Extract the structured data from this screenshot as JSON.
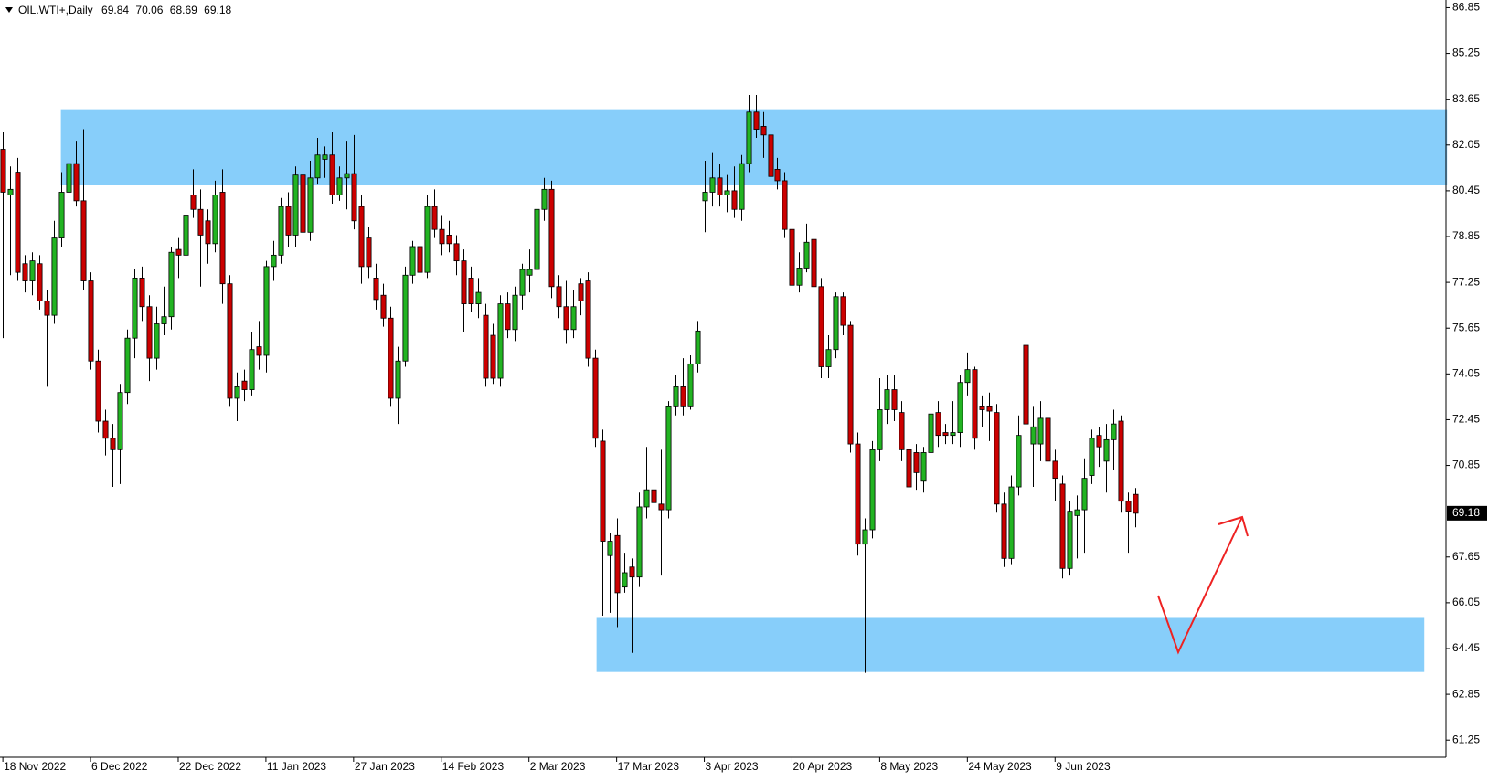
{
  "chart_data": {
    "type": "candlestick",
    "title": "OIL.WTI+,Daily",
    "categories": [
      "18 Nov 2022",
      null,
      null,
      null,
      null,
      null,
      null,
      null,
      null,
      null,
      null,
      null,
      "6 Dec 2022",
      null,
      null,
      null,
      null,
      null,
      null,
      null,
      null,
      null,
      null,
      null,
      "22 Dec 2022",
      null,
      null,
      null,
      null,
      null,
      null,
      null,
      null,
      null,
      null,
      null,
      "11 Jan 2023",
      null,
      null,
      null,
      null,
      null,
      null,
      null,
      null,
      null,
      null,
      null,
      "27 Jan 2023",
      null,
      null,
      null,
      null,
      null,
      null,
      null,
      null,
      null,
      null,
      null,
      "14 Feb 2023",
      null,
      null,
      null,
      null,
      null,
      null,
      null,
      null,
      null,
      null,
      null,
      "2 Mar 2023",
      null,
      null,
      null,
      null,
      null,
      null,
      null,
      null,
      null,
      null,
      null,
      "17 Mar 2023",
      null,
      null,
      null,
      null,
      null,
      null,
      null,
      null,
      null,
      null,
      null,
      "3 Apr 2023",
      null,
      null,
      null,
      null,
      null,
      null,
      null,
      null,
      null,
      null,
      null,
      "20 Apr 2023",
      null,
      null,
      null,
      null,
      null,
      null,
      null,
      null,
      null,
      null,
      null,
      "8 May 2023",
      null,
      null,
      null,
      null,
      null,
      null,
      null,
      null,
      null,
      null,
      null,
      "24 May 2023",
      null,
      null,
      null,
      null,
      null,
      null,
      null,
      null,
      null,
      null,
      null,
      "9 Jun 2023",
      null,
      null,
      null,
      null,
      null,
      null,
      null,
      null,
      null,
      null,
      null
    ],
    "open": [
      81.9,
      80.3,
      81.1,
      77.9,
      77.3,
      77.9,
      76.6,
      76.1,
      78.8,
      80.4,
      81.4,
      80.1,
      77.3,
      74.5,
      72.4,
      71.8,
      71.4,
      73.4,
      75.3,
      77.4,
      76.4,
      74.6,
      75.8,
      76.05,
      78.4,
      78.2,
      80.3,
      79.8,
      79.4,
      78.6,
      80.4,
      77.2,
      73.2,
      73.8,
      73.5,
      75.0,
      74.7,
      77.8,
      78.2,
      79.9,
      78.9,
      81.0,
      79.0,
      80.9,
      81.55,
      81.7,
      80.3,
      80.9,
      81.05,
      79.9,
      78.8,
      77.4,
      76.8,
      76.0,
      73.2,
      74.5,
      77.5,
      78.5,
      77.6,
      79.9,
      79.1,
      78.9,
      78.6,
      78.0,
      77.4,
      76.5,
      76.1,
      75.4,
      73.9,
      76.5,
      75.6,
      76.8,
      77.5,
      77.7,
      79.8,
      80.5,
      77.1,
      76.4,
      75.6,
      77.2,
      77.3,
      74.6,
      71.7,
      67.7,
      68.4,
      66.6,
      67.3,
      66.95,
      69.4,
      70.0,
      69.5,
      69.3,
      72.9,
      73.6,
      72.9,
      74.4,
      80.1,
      80.4,
      80.9,
      80.3,
      80.45,
      79.8,
      81.4,
      83.2,
      82.7,
      82.4,
      81.2,
      80.8,
      79.1,
      77.15,
      77.75,
      78.75,
      77.1,
      74.3,
      74.9,
      76.75,
      75.75,
      71.6,
      68.1,
      68.6,
      71.4,
      72.8,
      73.5,
      72.7,
      71.4,
      71.3,
      70.3,
      71.3,
      72.7,
      72.0,
      71.9,
      72.0,
      73.75,
      74.2,
      72.9,
      72.9,
      72.7,
      69.5,
      67.6,
      70.1,
      75.05,
      71.6,
      71.6,
      72.5,
      71.0,
      70.2,
      67.25,
      69.1,
      69.3,
      70.5,
      71.9,
      71.0,
      71.75,
      72.4,
      69.6,
      69.84
    ],
    "high": [
      82.5,
      81.3,
      81.6,
      78.2,
      78.3,
      78.2,
      77.0,
      79.4,
      81.1,
      83.4,
      82.2,
      82.6,
      77.6,
      74.9,
      72.8,
      72.3,
      73.7,
      75.6,
      77.7,
      77.8,
      76.8,
      76.4,
      77.1,
      78.5,
      78.8,
      80.0,
      81.2,
      80.5,
      79.8,
      80.8,
      81.2,
      77.5,
      74.1,
      74.2,
      75.5,
      75.9,
      78.0,
      78.7,
      80.2,
      80.4,
      81.3,
      81.6,
      81.5,
      82.3,
      82.0,
      82.5,
      81.3,
      82.2,
      82.4,
      80.3,
      79.2,
      77.9,
      77.2,
      76.4,
      75.0,
      77.8,
      78.7,
      79.2,
      80.3,
      80.5,
      79.6,
      79.4,
      78.9,
      78.4,
      77.8,
      77.4,
      76.5,
      75.8,
      76.8,
      76.9,
      77.1,
      77.9,
      78.4,
      80.2,
      80.9,
      80.8,
      77.5,
      77.3,
      77.0,
      77.4,
      77.6,
      74.9,
      72.1,
      68.5,
      69.0,
      67.8,
      67.6,
      69.9,
      71.5,
      70.5,
      71.4,
      73.1,
      74.0,
      74.6,
      74.7,
      75.9,
      81.5,
      81.8,
      81.4,
      81.0,
      81.3,
      81.7,
      83.8,
      83.8,
      83.2,
      82.7,
      81.6,
      81.1,
      79.5,
      78.3,
      79.3,
      79.2,
      77.4,
      75.4,
      76.9,
      76.9,
      75.9,
      72.0,
      69.0,
      71.7,
      73.9,
      74.0,
      74.0,
      73.1,
      71.9,
      71.6,
      71.5,
      72.8,
      73.1,
      72.3,
      73.1,
      74.0,
      74.8,
      74.3,
      73.3,
      73.4,
      73.0,
      69.9,
      70.5,
      72.6,
      75.1,
      72.9,
      73.1,
      73.1,
      71.4,
      70.5,
      69.6,
      69.8,
      71.1,
      72.1,
      72.2,
      72.3,
      72.8,
      72.6,
      69.9,
      70.06
    ],
    "low": [
      75.3,
      77.5,
      77.3,
      76.9,
      76.8,
      76.3,
      73.6,
      75.8,
      78.5,
      80.2,
      79.9,
      77.0,
      74.2,
      72.0,
      71.2,
      70.1,
      70.2,
      73.0,
      74.6,
      75.9,
      73.8,
      74.2,
      75.4,
      75.6,
      77.4,
      77.9,
      79.5,
      77.1,
      77.9,
      78.3,
      76.5,
      72.9,
      72.4,
      73.1,
      73.3,
      74.2,
      74.1,
      77.3,
      77.9,
      78.5,
      78.5,
      78.7,
      78.7,
      80.7,
      80.9,
      80.0,
      80.1,
      79.8,
      79.1,
      77.2,
      77.4,
      76.3,
      75.7,
      72.9,
      72.3,
      74.3,
      77.2,
      77.2,
      77.4,
      78.8,
      78.2,
      78.3,
      77.5,
      75.5,
      76.2,
      76.0,
      73.6,
      73.7,
      73.6,
      75.3,
      75.2,
      76.3,
      76.9,
      77.2,
      79.4,
      76.7,
      76.0,
      75.1,
      75.3,
      76.1,
      74.3,
      71.5,
      65.6,
      65.7,
      65.2,
      66.4,
      64.3,
      66.6,
      69.0,
      69.1,
      67.0,
      69.0,
      72.6,
      72.6,
      72.8,
      74.1,
      79.0,
      79.9,
      79.9,
      79.7,
      79.5,
      79.4,
      81.1,
      82.3,
      81.6,
      80.5,
      80.5,
      78.8,
      76.8,
      76.9,
      77.6,
      76.9,
      73.9,
      73.9,
      74.6,
      75.4,
      71.3,
      67.7,
      63.6,
      68.3,
      71.0,
      72.3,
      72.4,
      71.0,
      69.6,
      70.0,
      69.9,
      70.8,
      71.5,
      71.6,
      71.6,
      71.5,
      73.3,
      71.4,
      72.2,
      71.7,
      69.2,
      67.3,
      67.4,
      69.8,
      71.8,
      70.1,
      71.0,
      70.3,
      69.6,
      66.9,
      67.0,
      67.6,
      67.8,
      70.2,
      70.8,
      69.9,
      70.7,
      69.2,
      67.8,
      68.69
    ],
    "close": [
      80.4,
      80.5,
      77.6,
      77.3,
      78.0,
      76.6,
      76.1,
      78.8,
      80.4,
      81.4,
      80.1,
      77.3,
      74.5,
      72.4,
      71.8,
      71.4,
      73.4,
      75.3,
      77.4,
      76.4,
      74.6,
      75.8,
      76.05,
      78.3,
      78.2,
      79.6,
      79.8,
      78.9,
      78.6,
      80.3,
      77.2,
      73.2,
      73.6,
      73.5,
      74.9,
      74.7,
      77.8,
      78.2,
      79.9,
      78.9,
      81.0,
      79.0,
      80.9,
      81.7,
      81.7,
      80.3,
      80.9,
      81.05,
      79.4,
      77.8,
      77.8,
      76.65,
      76.0,
      73.2,
      74.5,
      77.5,
      78.5,
      77.6,
      79.9,
      79.1,
      78.6,
      78.6,
      78.0,
      76.5,
      76.5,
      76.9,
      73.9,
      73.9,
      76.5,
      75.6,
      76.8,
      77.7,
      77.7,
      79.8,
      80.5,
      77.1,
      76.4,
      75.6,
      76.4,
      76.6,
      74.6,
      71.8,
      68.2,
      68.2,
      66.4,
      67.1,
      66.95,
      69.4,
      70.0,
      69.55,
      69.3,
      72.9,
      73.6,
      72.9,
      74.4,
      75.55,
      80.4,
      80.9,
      80.3,
      80.45,
      79.8,
      81.4,
      83.2,
      82.6,
      82.4,
      80.95,
      80.8,
      79.1,
      77.15,
      77.75,
      78.65,
      77.1,
      74.3,
      74.9,
      76.75,
      75.75,
      71.6,
      68.1,
      68.6,
      71.4,
      72.8,
      73.5,
      72.8,
      71.4,
      70.1,
      70.6,
      71.3,
      72.65,
      71.9,
      71.9,
      72.0,
      73.75,
      74.2,
      71.8,
      72.8,
      72.75,
      69.5,
      67.6,
      70.1,
      71.9,
      72.3,
      72.2,
      72.5,
      71.0,
      70.4,
      67.25,
      69.25,
      69.3,
      70.4,
      71.8,
      71.5,
      71.75,
      72.3,
      69.6,
      69.25,
      69.18
    ],
    "up_color": "#22b422",
    "down_color": "#cc0000",
    "ylim": [
      60.65,
      87.12
    ],
    "yticks": [
      86.85,
      85.25,
      83.65,
      82.05,
      80.45,
      78.85,
      77.25,
      75.65,
      74.05,
      72.45,
      70.85,
      67.65,
      66.05,
      64.45,
      62.85,
      61.25
    ],
    "zones": [
      {
        "range": [
          80.64,
          83.3
        ],
        "color": "#87cefa"
      },
      {
        "range": [
          63.63,
          65.52
        ],
        "color": "#87cefa"
      }
    ]
  }
}
